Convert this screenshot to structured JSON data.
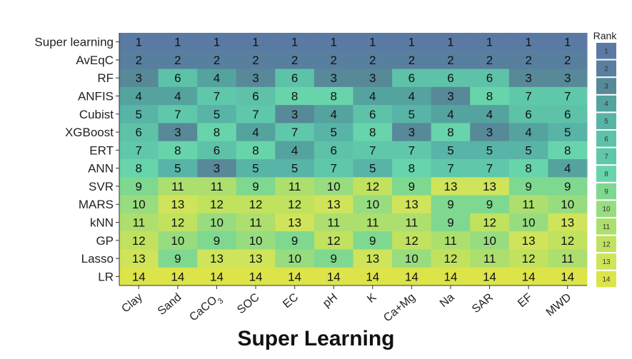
{
  "caption": "Super Learning",
  "chart_data": {
    "type": "heatmap",
    "rows": [
      "Super learning",
      "AvEqC",
      "RF",
      "ANFIS",
      "Cubist",
      "XGBoost",
      "ERT",
      "ANN",
      "SVR",
      "MARS",
      "kNN",
      "GP",
      "Lasso",
      "LR"
    ],
    "columns": [
      "Clay",
      "Sand",
      "CaCO3",
      "SOC",
      "EC",
      "pH",
      "K",
      "Ca+Mg",
      "Na",
      "SAR",
      "EF",
      "MWD"
    ],
    "values": [
      [
        1,
        1,
        1,
        1,
        1,
        1,
        1,
        1,
        1,
        1,
        1,
        1
      ],
      [
        2,
        2,
        2,
        2,
        2,
        2,
        2,
        2,
        2,
        2,
        2,
        2
      ],
      [
        3,
        6,
        4,
        3,
        6,
        3,
        3,
        6,
        6,
        6,
        3,
        3
      ],
      [
        4,
        4,
        7,
        6,
        8,
        8,
        4,
        4,
        3,
        8,
        7,
        7
      ],
      [
        5,
        7,
        5,
        7,
        3,
        4,
        6,
        5,
        4,
        4,
        6,
        6
      ],
      [
        6,
        3,
        8,
        4,
        7,
        5,
        8,
        3,
        8,
        3,
        4,
        5
      ],
      [
        7,
        8,
        6,
        8,
        4,
        6,
        7,
        7,
        5,
        5,
        5,
        8
      ],
      [
        8,
        5,
        3,
        5,
        5,
        7,
        5,
        8,
        7,
        7,
        8,
        4
      ],
      [
        9,
        11,
        11,
        9,
        11,
        10,
        12,
        9,
        13,
        13,
        9,
        9
      ],
      [
        10,
        13,
        12,
        12,
        12,
        13,
        10,
        13,
        9,
        9,
        11,
        10
      ],
      [
        11,
        12,
        10,
        11,
        13,
        11,
        11,
        11,
        9,
        12,
        10,
        13
      ],
      [
        12,
        10,
        9,
        10,
        9,
        12,
        9,
        12,
        11,
        10,
        13,
        12
      ],
      [
        13,
        9,
        13,
        13,
        10,
        9,
        13,
        10,
        12,
        11,
        12,
        11
      ],
      [
        14,
        14,
        14,
        14,
        14,
        14,
        14,
        14,
        14,
        14,
        14,
        14
      ]
    ],
    "legend": {
      "title": "Rank",
      "levels": [
        1,
        2,
        3,
        4,
        5,
        6,
        7,
        8,
        9,
        10,
        11,
        12,
        13,
        14
      ],
      "placement": "right"
    },
    "colors": {
      "rank_scale": [
        "#5b7aa3",
        "#597f9e",
        "#578998",
        "#54a39f",
        "#58b4a6",
        "#5ec2a8",
        "#5fc8aa",
        "#68d4ab",
        "#7fd88f",
        "#98dc80",
        "#addf6e",
        "#c0e25f",
        "#cfe45a",
        "#dce44a"
      ]
    }
  }
}
